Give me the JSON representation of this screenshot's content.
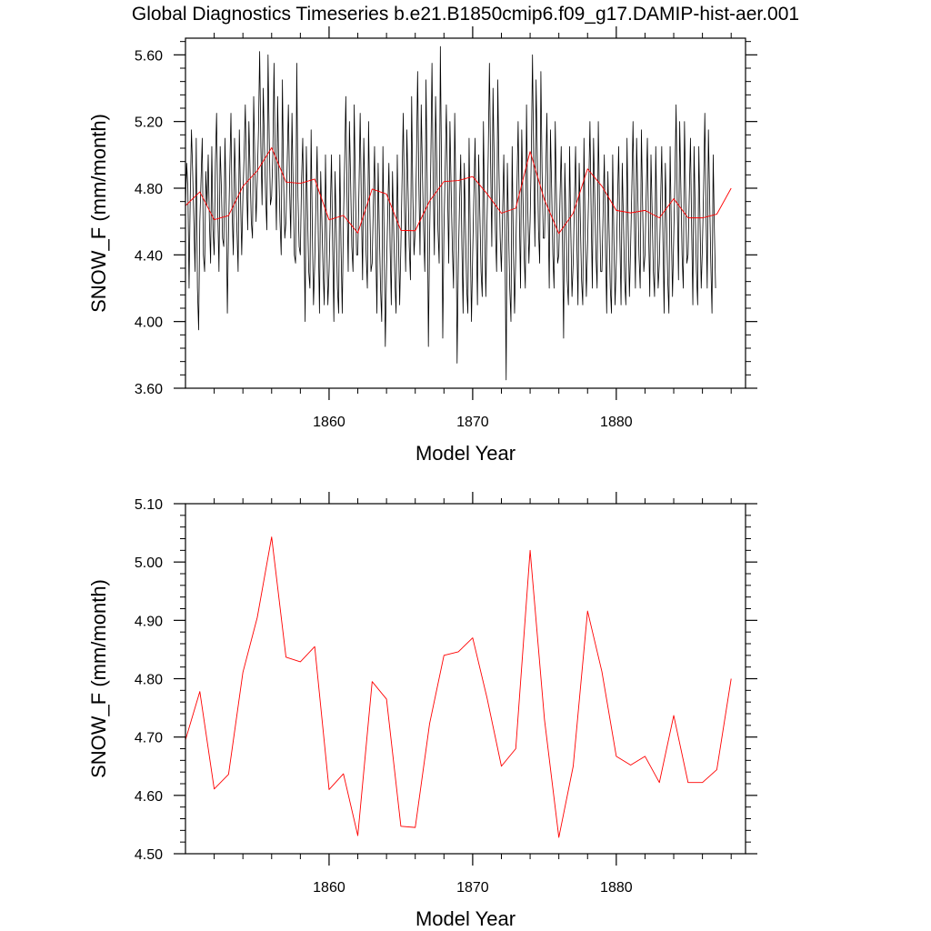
{
  "title": "Global Diagnostics Timeseries b.e21.B1850cmip6.f09_g17.DAMIP-hist-aer.001",
  "colors": {
    "monthly": "#000000",
    "annual": "#ff0000",
    "axes": "#000000"
  },
  "chart_data": [
    {
      "type": "line",
      "xlabel": "Model Year",
      "ylabel": "SNOW_F (mm/month)",
      "xlim": [
        1850,
        1889
      ],
      "ylim": [
        3.6,
        5.7
      ],
      "x_ticks": [
        1860,
        1870,
        1880
      ],
      "x_tick_labels": [
        "1860",
        "1870",
        "1880"
      ],
      "y_ticks": [
        3.6,
        4.0,
        4.4,
        4.8,
        5.2,
        5.6
      ],
      "y_tick_labels": [
        "3.60",
        "4.00",
        "4.40",
        "4.80",
        "5.20",
        "5.60"
      ],
      "grid": false,
      "series": [
        {
          "style": "monthly",
          "color": "#000000",
          "x_start": 1850,
          "x_step": 0.08333,
          "values": [
            4.7,
            4.95,
            4.8,
            4.2,
            4.75,
            5.15,
            4.9,
            4.6,
            4.3,
            5.1,
            4.2,
            3.95,
            4.6,
            4.85,
            5.1,
            4.4,
            4.3,
            4.9,
            4.7,
            5.0,
            4.6,
            4.35,
            5.05,
            4.55,
            4.4,
            4.95,
            5.25,
            4.65,
            4.3,
            5.05,
            4.8,
            4.5,
            4.45,
            5.1,
            4.7,
            4.05,
            4.55,
            4.9,
            5.25,
            4.65,
            4.4,
            5.1,
            4.8,
            4.55,
            4.3,
            5.15,
            4.75,
            4.4,
            4.75,
            5.0,
            5.3,
            4.85,
            4.55,
            5.2,
            4.9,
            4.6,
            4.5,
            5.35,
            4.95,
            4.6,
            4.85,
            5.15,
            5.62,
            5.05,
            4.7,
            5.4,
            5.05,
            4.75,
            4.55,
            5.6,
            5.1,
            4.7,
            4.75,
            5.0,
            5.55,
            4.95,
            4.55,
            5.35,
            4.9,
            4.6,
            4.4,
            5.45,
            4.85,
            4.5,
            4.6,
            4.95,
            5.3,
            4.8,
            4.5,
            5.25,
            4.8,
            4.4,
            4.35,
            5.55,
            4.75,
            4.45,
            4.4,
            4.85,
            5.1,
            4.6,
            4.0,
            5.05,
            4.65,
            4.3,
            4.2,
            5.15,
            4.55,
            4.1,
            4.35,
            4.7,
            5.05,
            4.5,
            4.05,
            4.9,
            4.6,
            4.3,
            4.1,
            5.0,
            4.5,
            4.1,
            4.3,
            4.65,
            5.0,
            4.45,
            4.0,
            4.9,
            4.55,
            4.2,
            4.05,
            5.0,
            4.45,
            4.05,
            4.6,
            4.95,
            5.35,
            4.75,
            4.3,
            5.2,
            4.85,
            4.45,
            4.3,
            5.3,
            4.8,
            4.4,
            4.4,
            4.8,
            5.25,
            4.7,
            4.25,
            5.1,
            4.75,
            4.4,
            4.2,
            5.2,
            4.7,
            4.3,
            4.35,
            4.7,
            5.05,
            4.45,
            4.05,
            4.95,
            4.55,
            4.2,
            4.0,
            5.05,
            4.5,
            3.85,
            4.3,
            4.65,
            4.95,
            4.45,
            4.1,
            4.9,
            4.55,
            4.25,
            4.05,
            5.0,
            4.5,
            4.1,
            4.45,
            4.85,
            5.25,
            4.7,
            4.3,
            5.15,
            4.8,
            4.45,
            4.25,
            5.35,
            4.75,
            4.4,
            4.55,
            4.95,
            5.5,
            4.85,
            4.4,
            5.3,
            4.9,
            4.55,
            4.3,
            5.45,
            4.85,
            3.85,
            4.5,
            4.95,
            5.55,
            4.85,
            4.4,
            5.35,
            4.95,
            4.55,
            4.35,
            5.65,
            4.9,
            3.9,
            4.55,
            4.9,
            5.3,
            4.8,
            4.35,
            5.2,
            4.8,
            4.45,
            4.2,
            5.25,
            4.75,
            3.75,
            4.35,
            4.7,
            5.0,
            4.45,
            4.05,
            4.95,
            4.55,
            4.2,
            4.05,
            5.1,
            4.5,
            4.0,
            4.4,
            4.75,
            5.1,
            4.55,
            4.1,
            5.0,
            4.65,
            4.3,
            4.15,
            5.2,
            4.6,
            4.15,
            4.6,
            5.0,
            5.55,
            4.95,
            4.45,
            5.4,
            4.95,
            4.55,
            4.3,
            5.45,
            4.9,
            4.5,
            4.3,
            4.65,
            5.0,
            4.45,
            3.65,
            4.95,
            4.55,
            4.2,
            4.0,
            5.05,
            4.45,
            4.05,
            4.4,
            4.8,
            5.2,
            4.65,
            4.2,
            5.15,
            4.75,
            4.4,
            4.2,
            5.3,
            4.7,
            4.35,
            4.6,
            5.0,
            5.6,
            4.95,
            4.45,
            5.45,
            5.0,
            4.55,
            4.35,
            5.5,
            4.9,
            4.5,
            4.5,
            4.85,
            5.25,
            4.7,
            4.2,
            5.15,
            4.8,
            4.4,
            4.2,
            5.2,
            4.75,
            4.35,
            4.4,
            4.75,
            5.05,
            4.5,
            3.9,
            4.95,
            4.6,
            4.25,
            4.1,
            5.05,
            4.55,
            4.15,
            4.35,
            4.7,
            5.05,
            4.5,
            4.1,
            4.95,
            4.6,
            4.25,
            4.1,
            5.1,
            4.55,
            4.15,
            4.45,
            4.8,
            5.2,
            4.65,
            4.2,
            5.1,
            4.75,
            4.4,
            4.2,
            5.2,
            4.7,
            4.3,
            4.3,
            4.65,
            5.0,
            4.45,
            4.05,
            4.9,
            4.55,
            4.2,
            4.05,
            5.0,
            4.5,
            4.1,
            4.35,
            4.7,
            5.05,
            4.5,
            4.1,
            4.95,
            4.6,
            4.25,
            4.1,
            5.1,
            4.55,
            4.15,
            4.45,
            4.8,
            5.2,
            4.65,
            4.2,
            5.1,
            4.75,
            4.4,
            4.2,
            5.15,
            4.7,
            4.3,
            4.4,
            4.75,
            5.1,
            4.55,
            4.15,
            5.0,
            4.65,
            4.3,
            4.15,
            5.05,
            4.6,
            4.2,
            4.35,
            4.7,
            5.05,
            4.5,
            4.05,
            4.95,
            4.6,
            4.25,
            4.05,
            5.05,
            4.55,
            4.15,
            4.5,
            4.85,
            5.3,
            4.7,
            4.25,
            5.2,
            4.8,
            4.4,
            4.2,
            5.2,
            4.75,
            4.35,
            4.4,
            4.75,
            5.1,
            4.55,
            4.1,
            5.05,
            4.65,
            4.3,
            4.1,
            5.05,
            4.6,
            4.2,
            4.45,
            4.8,
            5.25,
            4.65,
            4.2,
            5.15,
            4.75,
            4.35,
            4.05,
            5.0,
            4.55,
            4.2
          ]
        },
        {
          "style": "annual",
          "color": "#ff0000",
          "x": [
            1850.0,
            1851.0,
            1852.0,
            1853.0,
            1854.0,
            1855.0,
            1856.0,
            1857.0,
            1858.0,
            1859.0,
            1860.0,
            1861.0,
            1862.0,
            1863.0,
            1864.0,
            1865.0,
            1866.0,
            1867.0,
            1868.0,
            1869.0,
            1870.0,
            1871.0,
            1872.0,
            1873.0,
            1874.0,
            1875.0,
            1876.0,
            1877.0,
            1878.0,
            1879.0,
            1880.0,
            1881.0,
            1882.0,
            1883.0,
            1884.0,
            1885.0,
            1886.0,
            1887.0,
            1888.0
          ],
          "values": [
            4.695,
            4.778,
            4.611,
            4.636,
            4.811,
            4.905,
            5.043,
            4.837,
            4.829,
            4.855,
            4.61,
            4.637,
            4.531,
            4.795,
            4.765,
            4.547,
            4.545,
            4.723,
            4.84,
            4.846,
            4.87,
            4.767,
            4.65,
            4.68,
            5.02,
            4.73,
            4.528,
            4.65,
            4.916,
            4.812,
            4.667,
            4.652,
            4.667,
            4.622,
            4.737,
            4.622,
            4.622,
            4.644,
            4.8
          ]
        }
      ]
    },
    {
      "type": "line",
      "xlabel": "Model Year",
      "ylabel": "SNOW_F (mm/month)",
      "xlim": [
        1850,
        1889
      ],
      "ylim": [
        4.5,
        5.1
      ],
      "x_ticks": [
        1860,
        1870,
        1880
      ],
      "x_tick_labels": [
        "1860",
        "1870",
        "1880"
      ],
      "y_ticks": [
        4.5,
        4.6,
        4.7,
        4.8,
        4.9,
        5.0,
        5.1
      ],
      "y_tick_labels": [
        "4.50",
        "4.60",
        "4.70",
        "4.80",
        "4.90",
        "5.00",
        "5.10"
      ],
      "grid": false,
      "series": [
        {
          "style": "annual",
          "color": "#ff0000",
          "x": [
            1850.0,
            1851.0,
            1852.0,
            1853.0,
            1854.0,
            1855.0,
            1856.0,
            1857.0,
            1858.0,
            1859.0,
            1860.0,
            1861.0,
            1862.0,
            1863.0,
            1864.0,
            1865.0,
            1866.0,
            1867.0,
            1868.0,
            1869.0,
            1870.0,
            1871.0,
            1872.0,
            1873.0,
            1874.0,
            1875.0,
            1876.0,
            1877.0,
            1878.0,
            1879.0,
            1880.0,
            1881.0,
            1882.0,
            1883.0,
            1884.0,
            1885.0,
            1886.0,
            1887.0,
            1888.0
          ],
          "values": [
            4.695,
            4.778,
            4.611,
            4.636,
            4.811,
            4.905,
            5.043,
            4.837,
            4.829,
            4.855,
            4.61,
            4.637,
            4.531,
            4.795,
            4.765,
            4.547,
            4.545,
            4.723,
            4.84,
            4.846,
            4.87,
            4.767,
            4.65,
            4.68,
            5.02,
            4.73,
            4.528,
            4.65,
            4.916,
            4.812,
            4.667,
            4.652,
            4.667,
            4.622,
            4.737,
            4.622,
            4.622,
            4.644,
            4.8
          ]
        }
      ]
    }
  ]
}
